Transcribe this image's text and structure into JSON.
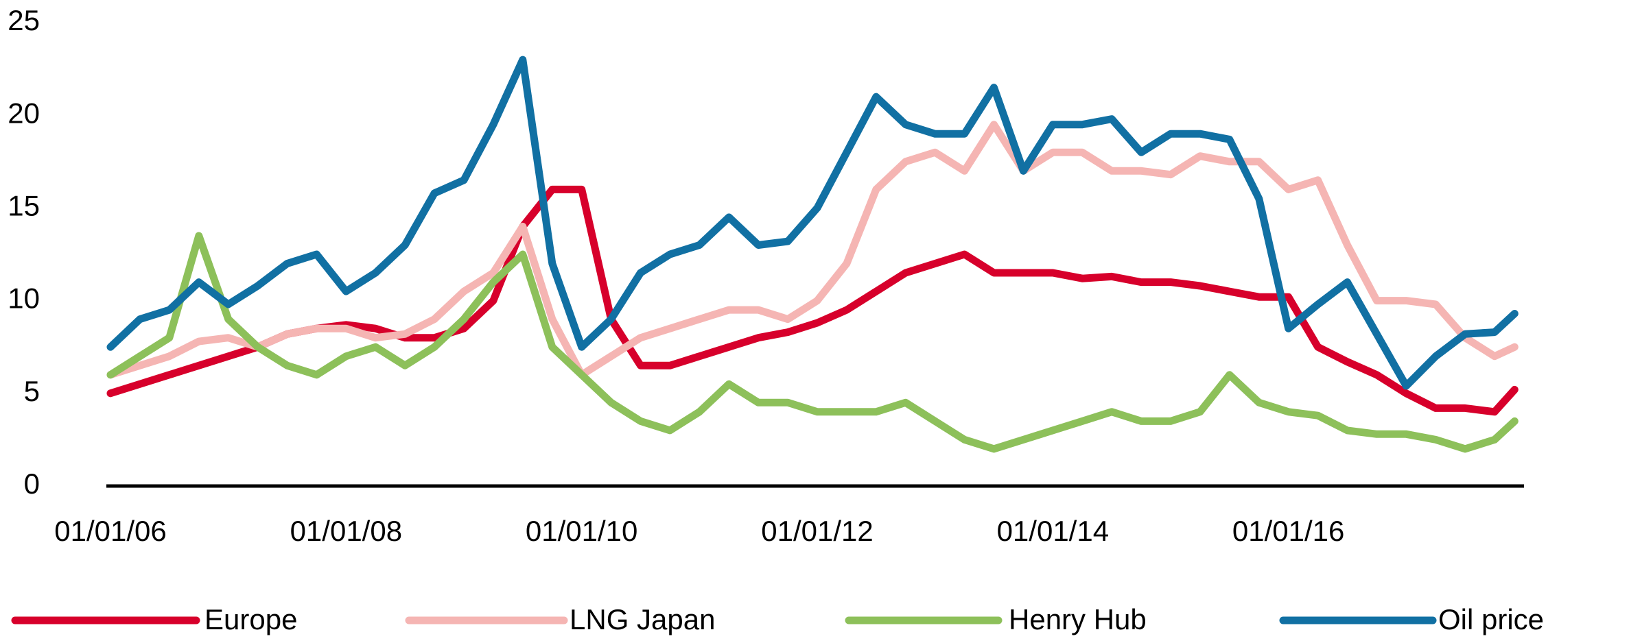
{
  "chart_data": {
    "type": "line",
    "x": [
      2006,
      2006.25,
      2006.5,
      2006.75,
      2007,
      2007.25,
      2007.5,
      2007.75,
      2008,
      2008.25,
      2008.5,
      2008.75,
      2009,
      2009.25,
      2009.5,
      2009.75,
      2010,
      2010.25,
      2010.5,
      2010.75,
      2011,
      2011.25,
      2011.5,
      2011.75,
      2012,
      2012.25,
      2012.5,
      2012.75,
      2013,
      2013.25,
      2013.5,
      2013.75,
      2014,
      2014.25,
      2014.5,
      2014.75,
      2015,
      2015.25,
      2015.5,
      2015.75,
      2016,
      2016.25,
      2016.5,
      2016.75,
      2017,
      2017.25,
      2017.5,
      2017.75,
      2017.92
    ],
    "series": [
      {
        "name": "Europe",
        "color": "#d7002b",
        "values": [
          5,
          5.5,
          6,
          6.5,
          7,
          7.5,
          8.2,
          8.5,
          8.7,
          8.5,
          8,
          8,
          8.5,
          10,
          14,
          16,
          16,
          9,
          6.5,
          6.5,
          7,
          7.5,
          8,
          8.3,
          8.8,
          9.5,
          10.5,
          11.5,
          12,
          12.5,
          11.5,
          11.5,
          11.5,
          11.2,
          11.3,
          11,
          11,
          10.8,
          10.5,
          10.2,
          10.2,
          7.5,
          6.7,
          6,
          5,
          4.2,
          4.2,
          4,
          5.2
        ]
      },
      {
        "name": "LNG Japan",
        "color": "#f5b5b3",
        "values": [
          6,
          6.5,
          7,
          7.8,
          8,
          7.5,
          8.2,
          8.5,
          8.5,
          8,
          8.2,
          9,
          10.5,
          11.5,
          14,
          9,
          6,
          7,
          8,
          8.5,
          9,
          9.5,
          9.5,
          9,
          10,
          12,
          16,
          17.5,
          18,
          17,
          19.5,
          17,
          18,
          18,
          17,
          17,
          16.8,
          17.8,
          17.5,
          17.5,
          16,
          16.5,
          13,
          10,
          10,
          9.8,
          8,
          7,
          7.5
        ]
      },
      {
        "name": "Henry Hub",
        "color": "#8dc05a",
        "values": [
          6,
          7,
          8,
          13.5,
          9,
          7.5,
          6.5,
          6,
          7,
          7.5,
          6.5,
          7.5,
          9,
          11,
          12.5,
          7.5,
          6,
          4.5,
          3.5,
          3,
          4,
          5.5,
          4.5,
          4.5,
          4,
          4,
          4,
          4.5,
          3.5,
          2.5,
          2,
          2.5,
          3,
          3.5,
          4,
          3.5,
          3.5,
          4,
          6,
          4.5,
          4,
          3.8,
          3,
          2.8,
          2.8,
          2.5,
          2,
          2.5,
          3.5
        ]
      },
      {
        "name": "Oil price",
        "color": "#1170a3",
        "values": [
          7.5,
          9,
          9.5,
          11,
          9.8,
          10.8,
          12,
          12.5,
          10.5,
          11.5,
          13,
          15.8,
          16.5,
          19.5,
          23,
          12,
          7.5,
          9,
          11.5,
          12.5,
          13,
          14.5,
          13,
          13.2,
          15,
          18,
          21,
          19.5,
          19,
          19,
          21.5,
          17,
          19.5,
          19.5,
          19.8,
          18,
          19,
          19,
          18.7,
          15.5,
          8.5,
          9.8,
          11,
          8.2,
          5.4,
          7,
          8.2,
          8.3,
          9.3
        ]
      }
    ],
    "xlim": [
      2006,
      2018
    ],
    "xticks": [
      {
        "value": 2006,
        "label": "01/01/06"
      },
      {
        "value": 2008,
        "label": "01/01/08"
      },
      {
        "value": 2010,
        "label": "01/01/10"
      },
      {
        "value": 2012,
        "label": "01/01/12"
      },
      {
        "value": 2014,
        "label": "01/01/14"
      },
      {
        "value": 2016,
        "label": "01/01/16"
      }
    ],
    "ylim": [
      0,
      25
    ],
    "yticks": [
      0,
      5,
      10,
      15,
      20,
      25
    ],
    "grid": false,
    "legend": "bottom"
  }
}
